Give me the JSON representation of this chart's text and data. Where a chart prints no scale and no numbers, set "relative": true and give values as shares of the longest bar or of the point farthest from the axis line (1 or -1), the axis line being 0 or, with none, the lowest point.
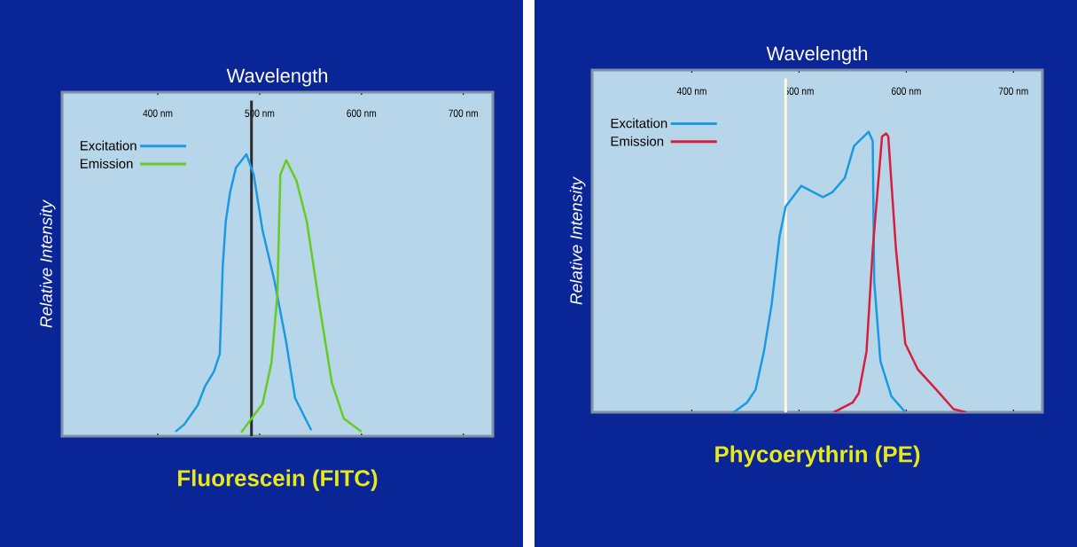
{
  "chart_data": [
    {
      "type": "line",
      "title": "Fluorescein (FITC)",
      "xlabel": "Wavelength",
      "ylabel": "Relative Intensity",
      "relative": true,
      "xlim": [
        306,
        729
      ],
      "xticks": [
        {
          "value": 400,
          "label": "400 nm"
        },
        {
          "value": 500,
          "label": "500 nm"
        },
        {
          "value": 600,
          "label": "600 nm"
        },
        {
          "value": 700,
          "label": "700 nm"
        }
      ],
      "tick_labels": "x",
      "legend": "top left",
      "marker": "none",
      "line_style": "solid",
      "ref_lines": [
        {
          "axis": "x",
          "value": 492,
          "color": "#2b2b2b"
        }
      ],
      "series": [
        {
          "name": "Excitation",
          "color": "#1a9ae0",
          "x": [
            417.4,
            426.1,
            439.1,
            446.4,
            455.1,
            460.9,
            463.8,
            466.7,
            471.0,
            476.8,
            487.0,
            494.2,
            502.9,
            514.5,
            526.1,
            534.8,
            550.7
          ],
          "values": [
            0.016,
            0.042,
            0.109,
            0.177,
            0.229,
            0.292,
            0.604,
            0.76,
            0.865,
            0.953,
            1.0,
            0.927,
            0.729,
            0.552,
            0.333,
            0.135,
            0.021
          ]
        },
        {
          "name": "Emission",
          "color": "#66cc22",
          "x": [
            482.0,
            494.2,
            502.9,
            511.6,
            517.4,
            520.3,
            526.1,
            536.2,
            546.4,
            559.4,
            571.0,
            582.6,
            600.0
          ],
          "values": [
            0.013,
            0.073,
            0.115,
            0.26,
            0.5,
            0.927,
            0.979,
            0.906,
            0.76,
            0.448,
            0.188,
            0.063,
            0.016
          ]
        }
      ]
    },
    {
      "type": "line",
      "title": "Phycoerythrin (PE)",
      "xlabel": "Wavelength",
      "ylabel": "Relative Intensity",
      "relative": true,
      "xlim": [
        307,
        727
      ],
      "xticks": [
        {
          "value": 400,
          "label": "400 nm"
        },
        {
          "value": 500,
          "label": "500 nm"
        },
        {
          "value": 600,
          "label": "600 nm"
        },
        {
          "value": 700,
          "label": "700 nm"
        }
      ],
      "tick_labels": "x",
      "legend": "top left",
      "marker": "none",
      "line_style": "solid",
      "ref_lines": [
        {
          "axis": "x",
          "value": 487.5,
          "color": "#fff8e0"
        }
      ],
      "series": [
        {
          "name": "Excitation",
          "color": "#1a9ae0",
          "x": [
            439.1,
            451.3,
            459.4,
            467.2,
            474.5,
            481.7,
            487.5,
            502.0,
            522.3,
            531.0,
            542.6,
            551.3,
            564.9,
            568.7,
            570.1,
            575.9,
            586.1,
            599.1
          ],
          "values": [
            0,
            0.034,
            0.08,
            0.216,
            0.386,
            0.625,
            0.733,
            0.807,
            0.767,
            0.784,
            0.835,
            0.949,
            1.0,
            0.966,
            0.466,
            0.182,
            0.057,
            0
          ]
        },
        {
          "name": "Emission",
          "color": "#d81e3c",
          "x": [
            532.5,
            549.9,
            555.7,
            562.9,
            568.7,
            577.4,
            581.2,
            583.2,
            590.4,
            599.1,
            610.7,
            628.1,
            644.1,
            655.7
          ],
          "values": [
            0,
            0.034,
            0.068,
            0.216,
            0.58,
            0.983,
            0.994,
            0.983,
            0.58,
            0.244,
            0.153,
            0.08,
            0.011,
            0
          ]
        }
      ]
    }
  ]
}
